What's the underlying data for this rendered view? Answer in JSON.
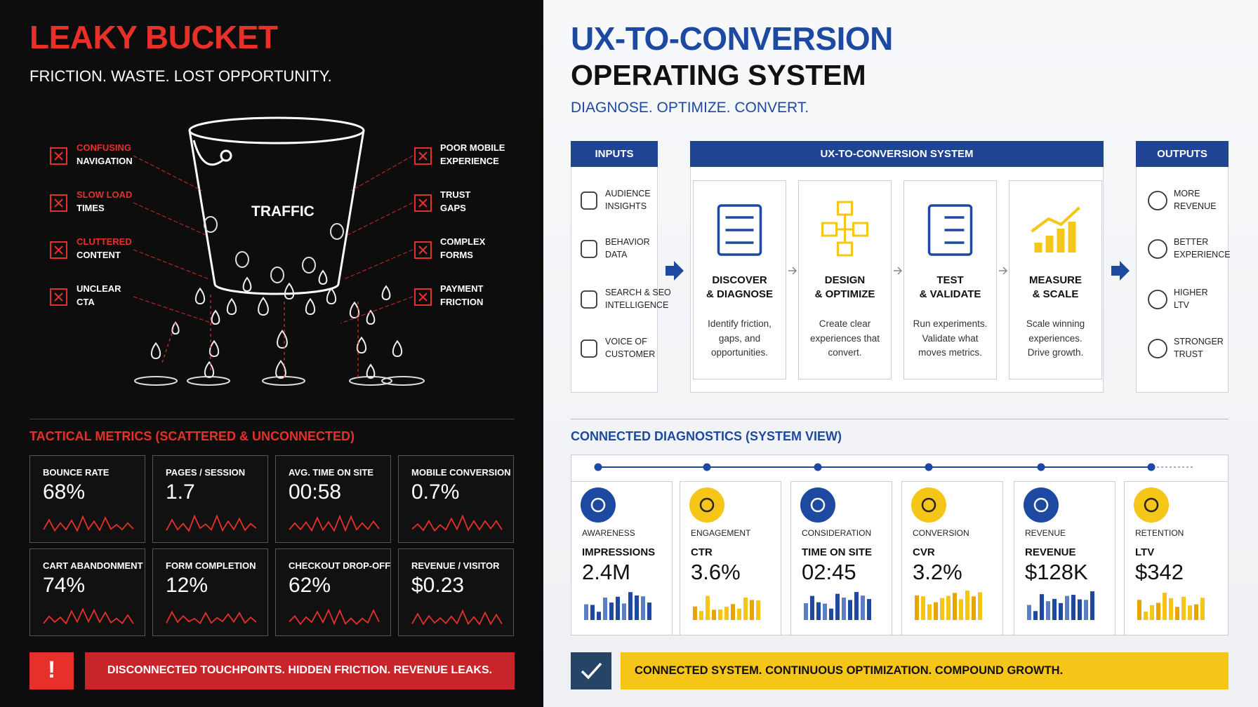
{
  "left": {
    "title": "LEAKY BUCKET",
    "subtitle": "FRICTION. WASTE. LOST OPPORTUNITY.",
    "bucket_label": "TRAFFIC",
    "leaks": [
      {
        "lines": [
          "CONFUSING",
          "NAVIGATION"
        ],
        "accent": true
      },
      {
        "lines": [
          "SLOW LOAD",
          "TIMES"
        ],
        "accent": true
      },
      {
        "lines": [
          "CLUTTERED",
          "CONTENT"
        ],
        "accent": true
      },
      {
        "lines": [
          "UNCLEAR",
          "CTA"
        ],
        "accent": false
      },
      {
        "lines": [
          "POOR MOBILE",
          "EXPERIENCE"
        ],
        "accent": false
      },
      {
        "lines": [
          "TRUST",
          "GAPS"
        ],
        "accent": false
      },
      {
        "lines": [
          "COMPLEX",
          "FORMS"
        ],
        "accent": false
      },
      {
        "lines": [
          "PAYMENT",
          "FRICTION"
        ],
        "accent": false
      }
    ],
    "metrics_title": "TACTICAL METRICS (SCATTERED & UNCONNECTED)",
    "metrics": [
      {
        "label": "BOUNCE RATE",
        "value": "68%"
      },
      {
        "label": "PAGES / SESSION",
        "value": "1.7"
      },
      {
        "label": "AVG. TIME ON SITE",
        "value": "00:58"
      },
      {
        "label": "MOBILE CONVERSION",
        "value": "0.7%"
      },
      {
        "label": "CART ABANDONMENT",
        "value": "74%"
      },
      {
        "label": "FORM COMPLETION",
        "value": "12%"
      },
      {
        "label": "CHECKOUT DROP-OFF",
        "value": "62%"
      },
      {
        "label": "REVENUE / VISITOR",
        "value": "$0.23"
      }
    ],
    "alert_icon": "!",
    "alert": "DISCONNECTED TOUCHPOINTS. HIDDEN FRICTION. REVENUE LEAKS."
  },
  "right": {
    "title_lines": [
      "UX-TO-CONVERSION",
      "OPERATING SYSTEM"
    ],
    "tagline": "DIAGNOSE. OPTIMIZE. CONVERT.",
    "inputs": {
      "header": "INPUTS",
      "items": [
        {
          "lines": [
            "AUDIENCE",
            "INSIGHTS"
          ]
        },
        {
          "lines": [
            "BEHAVIOR",
            "DATA"
          ]
        },
        {
          "lines": [
            "SEARCH & SEO",
            "INTELLIGENCE"
          ]
        },
        {
          "lines": [
            "VOICE OF",
            "CUSTOMER"
          ]
        }
      ]
    },
    "system": {
      "header": "UX-TO-CONVERSION SYSTEM",
      "steps": [
        {
          "title": [
            "DISCOVER",
            "& DIAGNOSE"
          ],
          "description": "Identify friction, gaps, and opportunities."
        },
        {
          "title": [
            "DESIGN",
            "& OPTIMIZE"
          ],
          "description": "Create clear experiences that convert."
        },
        {
          "title": [
            "TEST",
            "& VALIDATE"
          ],
          "description": "Run experiments. Validate what moves metrics."
        },
        {
          "title": [
            "MEASURE",
            "& SCALE"
          ],
          "description": "Scale winning experiences. Drive growth."
        }
      ]
    },
    "outputs": {
      "header": "OUTPUTS",
      "items": [
        {
          "lines": [
            "MORE",
            "REVENUE"
          ]
        },
        {
          "lines": [
            "BETTER",
            "EXPERIENCE"
          ]
        },
        {
          "lines": [
            "HIGHER",
            "LTV"
          ]
        },
        {
          "lines": [
            "STRONGER",
            "TRUST"
          ]
        }
      ]
    },
    "diagnostics": {
      "title": "CONNECTED DIAGNOSTICS (SYSTEM VIEW)",
      "stages": [
        {
          "stage": "AWARENESS",
          "metric": "IMPRESSIONS",
          "value": "2.4M"
        },
        {
          "stage": "ENGAGEMENT",
          "metric": "CTR",
          "value": "3.6%"
        },
        {
          "stage": "CONSIDERATION",
          "metric": "TIME ON SITE",
          "value": "02:45"
        },
        {
          "stage": "CONVERSION",
          "metric": "CVR",
          "value": "3.2%"
        },
        {
          "stage": "REVENUE",
          "metric": "REVENUE",
          "value": "$128K"
        },
        {
          "stage": "RETENTION",
          "metric": "LTV",
          "value": "$342"
        }
      ]
    },
    "footer": "CONNECTED SYSTEM. CONTINUOUS OPTIMIZATION. COMPOUND GROWTH."
  }
}
